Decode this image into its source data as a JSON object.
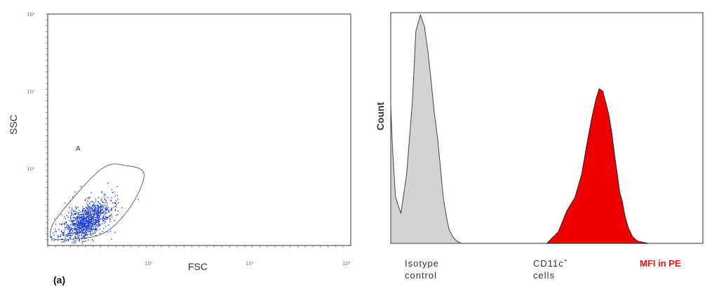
{
  "panel_label": "(a)",
  "colors": {
    "dot": "#1f3fe0",
    "isotype_fill": "#d3d3d3",
    "cd11c_fill": "#ee0000",
    "mfi_text": "#ee1111",
    "axis": "#333333"
  },
  "chart_data": [
    {
      "type": "scatter",
      "xlabel": "FSC",
      "ylabel": "SSC",
      "x_scale": "log",
      "y_scale": "log",
      "xlim": [
        1,
        1000
      ],
      "ylim": [
        1,
        1000
      ],
      "x_ticks": [
        "10²",
        "10³",
        "10⁴"
      ],
      "y_ticks": [
        "10²",
        "10³",
        "10⁴"
      ],
      "gate_label": "A",
      "gate_polygon": [
        [
          1.3,
          1.2
        ],
        [
          3.4,
          1.4
        ],
        [
          6.4,
          3.0
        ],
        [
          9.0,
          8.3
        ],
        [
          6.0,
          10.8
        ],
        [
          3.4,
          9.8
        ],
        [
          1.3,
          2.5
        ],
        [
          1.06,
          1.4
        ]
      ],
      "cluster_center": [
        2.4,
        2.1
      ],
      "n_points": 1200
    },
    {
      "type": "area",
      "ylabel": "Count",
      "x_scale": "log",
      "xlim": [
        1,
        10000
      ],
      "ylim": [
        0,
        100
      ],
      "categories": [
        "Isotype control",
        "CD11c⁺ cells"
      ],
      "x_marker_label": "MFI in PE",
      "series": [
        {
          "name": "Isotype control",
          "x": [
            1,
            1.05,
            1.15,
            1.35,
            1.6,
            1.9,
            2.1,
            2.4,
            2.7,
            3.0,
            3.3,
            3.6,
            4.0,
            4.3,
            4.7,
            5.2,
            5.6,
            6.2,
            7.0,
            8.0
          ],
          "values": [
            60,
            42,
            20,
            13,
            30,
            62,
            92,
            99,
            94,
            83,
            70,
            57,
            45,
            34,
            20,
            11,
            6,
            3,
            1,
            0
          ]
        },
        {
          "name": "CD11c⁺ cells",
          "x": [
            100,
            140,
            180,
            230,
            280,
            330,
            380,
            430,
            470,
            520,
            570,
            620,
            680,
            740,
            800,
            860,
            930,
            1000,
            1100,
            1250,
            1450,
            1700,
            2000
          ],
          "values": [
            0,
            5,
            14,
            20,
            30,
            44,
            55,
            63,
            67,
            66,
            61,
            56,
            48,
            38,
            30,
            22,
            18,
            12,
            7,
            3,
            1,
            0.5,
            0
          ]
        }
      ]
    }
  ]
}
